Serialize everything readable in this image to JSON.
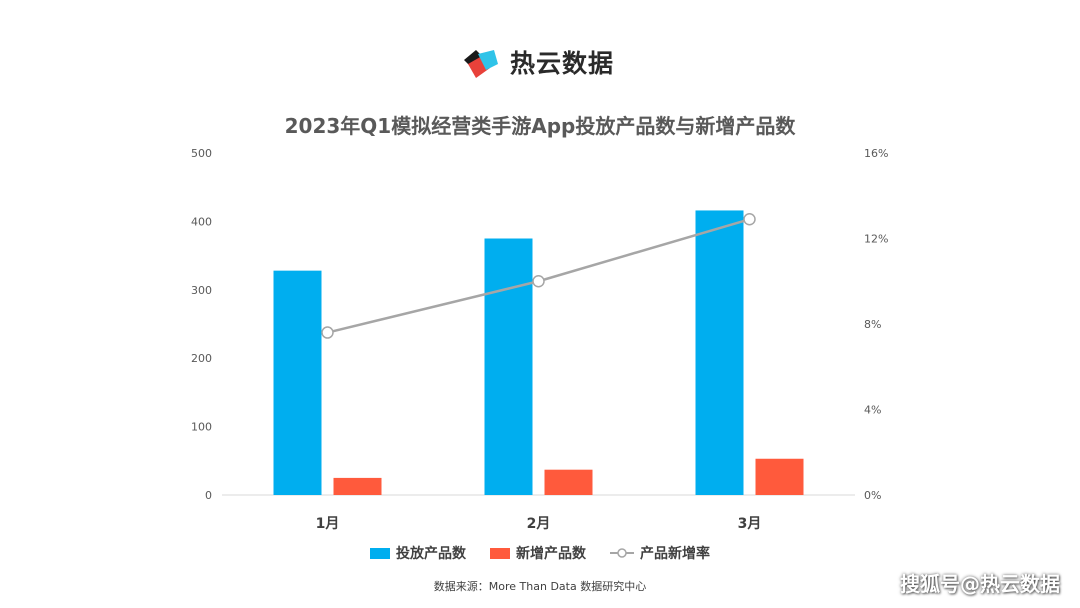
{
  "brand": {
    "name": "热云数据"
  },
  "watermark": "搜狐号@热云数据",
  "source": "数据来源：More Than Data 数据研究中心",
  "colors": {
    "bar_primary": "#00AEEF",
    "bar_secondary": "#FF5A3C",
    "line": "#A6A6A6",
    "marker_fill": "#FFFFFF",
    "axis_text": "#595959",
    "category_text": "#404040",
    "baseline": "#D9D9D9"
  },
  "chart_data": {
    "type": "bar",
    "title": "2023年Q1模拟经营类手游App投放产品数与新增产品数",
    "categories": [
      "1月",
      "2月",
      "3月"
    ],
    "series": [
      {
        "name": "投放产品数",
        "type": "bar",
        "axis": "left",
        "color": "#00AEEF",
        "values": [
          328,
          375,
          416
        ]
      },
      {
        "name": "新增产品数",
        "type": "bar",
        "axis": "left",
        "color": "#FF5A3C",
        "values": [
          25,
          37,
          53
        ]
      },
      {
        "name": "产品新增率",
        "type": "line",
        "axis": "right",
        "color": "#A6A6A6",
        "values": [
          7.6,
          10.0,
          12.9
        ]
      }
    ],
    "y_left": {
      "min": 0,
      "max": 500,
      "ticks": [
        "0",
        "100",
        "200",
        "300",
        "400",
        "500"
      ]
    },
    "y_right": {
      "min": 0,
      "max": 16,
      "ticks": [
        "0%",
        "4%",
        "8%",
        "12%",
        "16%"
      ]
    },
    "grid": false,
    "legend_position": "bottom"
  }
}
